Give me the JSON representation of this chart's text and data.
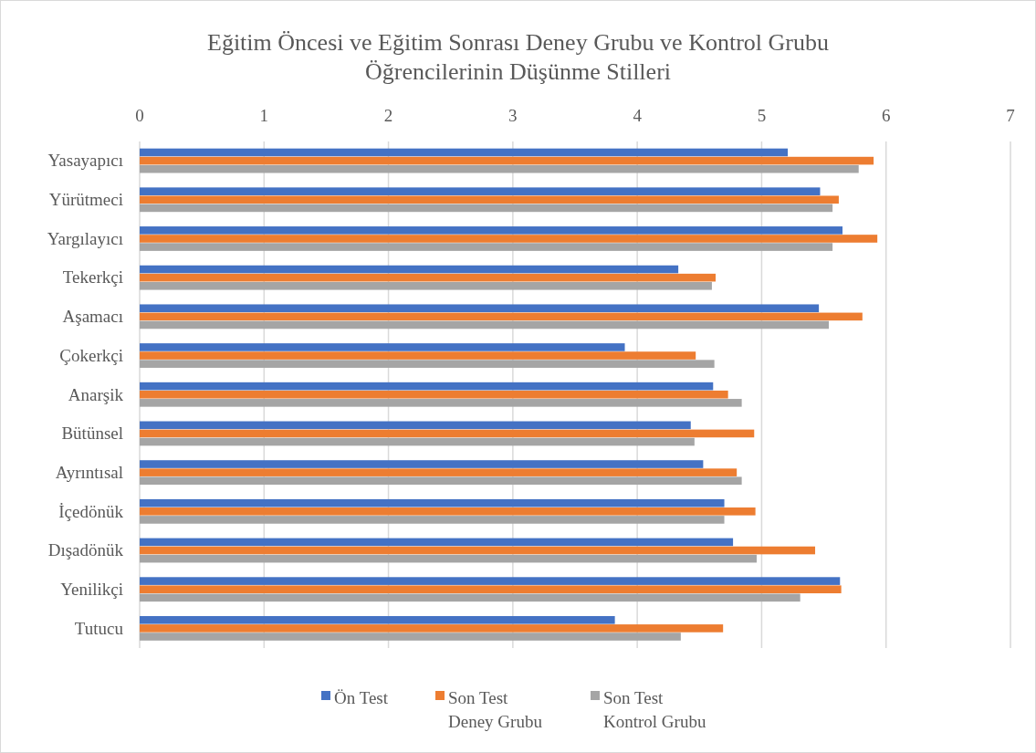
{
  "chart_data": {
    "type": "bar",
    "orientation": "horizontal",
    "title": "Eğitim Öncesi ve Eğitim Sonrası Deney Grubu ve Kontrol Grubu Öğrencilerinin Düşünme Stilleri",
    "categories": [
      "Yasayapıcı",
      "Yürütmeci",
      "Yargılayıcı",
      "Tekerkçi",
      "Aşamacı",
      "Çokerkçi",
      "Anarşik",
      "Bütünsel",
      "Ayrıntısal",
      "İçedönük",
      "Dışadönük",
      "Yenilikçi",
      "Tutucu"
    ],
    "series": [
      {
        "name": "Ön Test",
        "color": "#4472c4",
        "values": [
          5.21,
          5.47,
          5.65,
          4.33,
          5.46,
          3.9,
          4.61,
          4.43,
          4.53,
          4.7,
          4.77,
          5.63,
          3.82
        ]
      },
      {
        "name": "Son Test Deney Grubu",
        "color": "#ed7d31",
        "values": [
          5.9,
          5.62,
          5.93,
          4.63,
          5.81,
          4.47,
          4.73,
          4.94,
          4.8,
          4.95,
          5.43,
          5.64,
          4.69
        ]
      },
      {
        "name": "Son Test Kontrol Grubu",
        "color": "#a5a5a5",
        "values": [
          5.78,
          5.57,
          5.57,
          4.6,
          5.54,
          4.62,
          4.84,
          4.46,
          4.84,
          4.7,
          4.96,
          5.31,
          4.35
        ]
      }
    ],
    "xlim": [
      0,
      7
    ],
    "xticks": [
      0,
      1,
      2,
      3,
      4,
      5,
      6,
      7
    ],
    "grid": "x",
    "legend": "bottom"
  }
}
